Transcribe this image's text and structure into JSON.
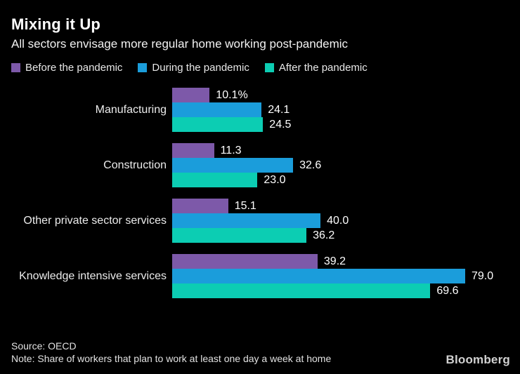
{
  "header": {
    "title": "Mixing it Up",
    "subtitle": "All sectors envisage more regular home working post-pandemic"
  },
  "chart_data": {
    "type": "bar",
    "orientation": "horizontal",
    "title": "Mixing it Up",
    "subtitle": "All sectors envisage more regular home working post-pandemic",
    "legend_position": "top",
    "grid": false,
    "xlim": [
      0,
      79
    ],
    "categories": [
      "Manufacturing",
      "Construction",
      "Other private sector services",
      "Knowledge intensive services"
    ],
    "series": [
      {
        "name": "Before the pandemic",
        "color": "#7d59a9",
        "values": [
          10.1,
          11.3,
          15.1,
          39.2
        ],
        "labels": [
          "10.1%",
          "11.3",
          "15.1",
          "39.2"
        ]
      },
      {
        "name": "During the pandemic",
        "color": "#1b9ddb",
        "values": [
          24.1,
          32.6,
          40.0,
          79.0
        ],
        "labels": [
          "24.1",
          "32.6",
          "40.0",
          "79.0"
        ]
      },
      {
        "name": "After the pandemic",
        "color": "#0ccdb3",
        "values": [
          24.5,
          23.0,
          36.2,
          69.6
        ],
        "labels": [
          "24.5",
          "23.0",
          "36.2",
          "69.6"
        ]
      }
    ]
  },
  "footer": {
    "source": "Source: OECD",
    "note": "Note: Share of workers that plan to work at least one day a week at home",
    "brand": "Bloomberg"
  }
}
